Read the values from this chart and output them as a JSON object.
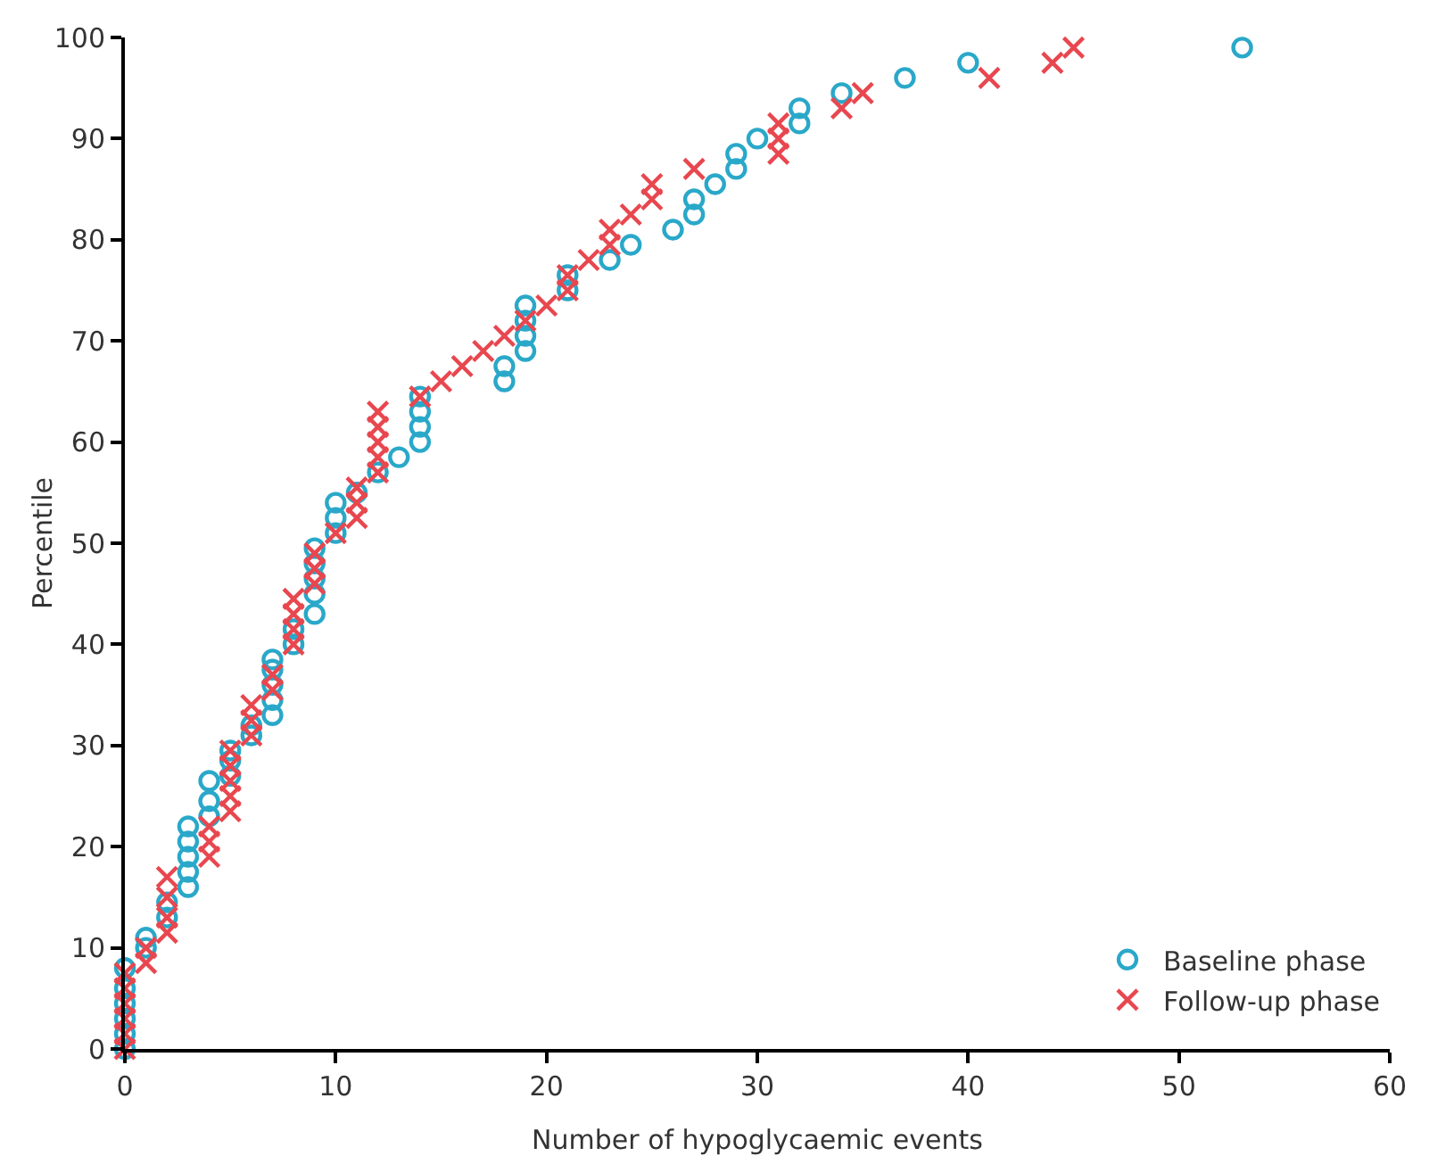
{
  "chart_data": {
    "type": "scatter",
    "xlabel": "Number of hypoglycaemic events",
    "ylabel": "Percentile",
    "xlim": [
      0,
      60
    ],
    "ylim": [
      0,
      100
    ],
    "xticks": [
      0,
      10,
      20,
      30,
      40,
      50,
      60
    ],
    "yticks": [
      0,
      10,
      20,
      30,
      40,
      50,
      60,
      70,
      80,
      90,
      100
    ],
    "grid": false,
    "legend": "bottom right",
    "series": [
      {
        "name": "Baseline phase",
        "color": "#2aa8c9",
        "marker": "circle",
        "x": [
          0,
          0,
          0,
          0,
          0,
          0,
          1,
          1,
          2,
          2,
          3,
          3,
          3,
          3,
          3,
          4,
          4,
          4,
          5,
          5,
          5,
          6,
          6,
          7,
          7,
          7,
          7,
          7,
          8,
          8,
          9,
          9,
          9,
          9,
          9,
          10,
          10,
          10,
          11,
          12,
          13,
          14,
          14,
          14,
          14,
          18,
          18,
          19,
          19,
          19,
          19,
          21,
          21,
          23,
          24,
          26,
          27,
          27,
          28,
          29,
          29,
          30,
          32,
          32,
          34,
          37,
          40,
          53
        ],
        "values": [
          0,
          1.5,
          3,
          4.5,
          6,
          8,
          10,
          11,
          13,
          14.5,
          16,
          17.5,
          19,
          20.5,
          22,
          23,
          24.5,
          26.5,
          27,
          28.5,
          29.5,
          31,
          32,
          33,
          34.5,
          36,
          37.5,
          38.5,
          40,
          41.5,
          43,
          45,
          46.5,
          48,
          49.5,
          51,
          52.5,
          54,
          55,
          57,
          58.5,
          60,
          61.5,
          63,
          64.5,
          66,
          67.5,
          69,
          70.5,
          72,
          73.5,
          75,
          76.5,
          78,
          79.5,
          81,
          82.5,
          84,
          85.5,
          87,
          88.5,
          90,
          91.5,
          93,
          94.5,
          96,
          97.5,
          99
        ]
      },
      {
        "name": "Follow-up phase",
        "color": "#e8474f",
        "marker": "cross",
        "x": [
          0,
          0,
          0,
          0,
          0,
          0,
          1,
          1,
          2,
          2,
          2,
          2,
          4,
          4,
          4,
          5,
          5,
          5,
          5,
          5,
          6,
          6,
          6,
          7,
          7,
          8,
          8,
          8,
          8,
          9,
          9,
          9,
          10,
          11,
          11,
          11,
          12,
          12,
          12,
          12,
          12,
          14,
          15,
          16,
          17,
          18,
          19,
          20,
          21,
          21,
          22,
          23,
          23,
          24,
          25,
          25,
          27,
          31,
          31,
          31,
          34,
          35,
          41,
          44,
          45
        ],
        "values": [
          0,
          1.5,
          3,
          4.5,
          6,
          7.5,
          8.5,
          10,
          11.5,
          13,
          15,
          17,
          19,
          20.5,
          22,
          23.5,
          25,
          26.5,
          28,
          29.5,
          31,
          32.5,
          34,
          35.5,
          37,
          40,
          41.5,
          43,
          44.5,
          46,
          47.5,
          49,
          51,
          52.5,
          54,
          55.5,
          57,
          58.5,
          60,
          61.5,
          63,
          64.5,
          66,
          67.5,
          69,
          70.5,
          72,
          73.5,
          75,
          76.5,
          78,
          79.5,
          81,
          82.5,
          84,
          85.5,
          87,
          88.5,
          90,
          91.5,
          93,
          94.5,
          96,
          97.5,
          99
        ]
      }
    ]
  }
}
